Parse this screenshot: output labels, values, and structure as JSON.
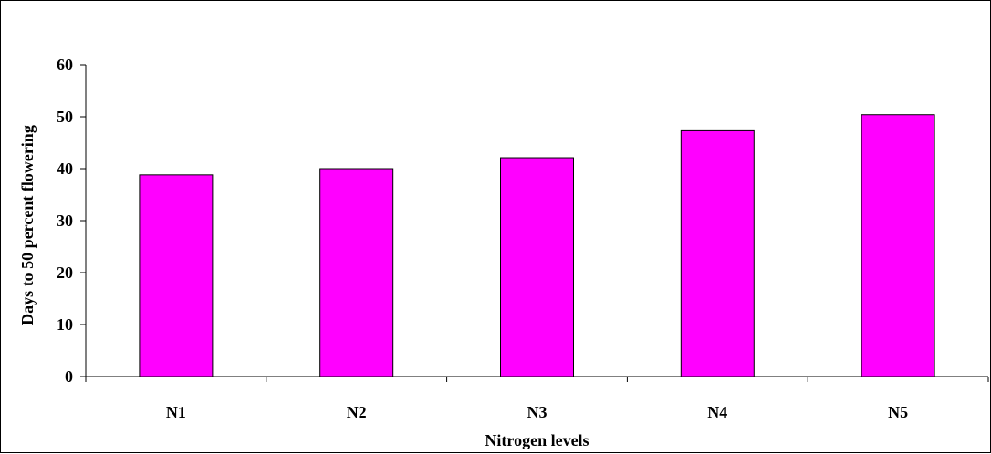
{
  "chart_data": {
    "type": "bar",
    "categories": [
      "N1",
      "N2",
      "N3",
      "N4",
      "N5"
    ],
    "values": [
      38.8,
      40.0,
      42.1,
      47.3,
      50.4
    ],
    "xlabel": "Nitrogen levels",
    "ylabel": "Days to 50 percent flowering",
    "ylim": [
      0,
      60
    ],
    "yticks": [
      0,
      10,
      20,
      30,
      40,
      50,
      60
    ],
    "grid": false,
    "legend": "none",
    "bar_color": "#FF00FF",
    "bar_outline_color": "#000000"
  }
}
